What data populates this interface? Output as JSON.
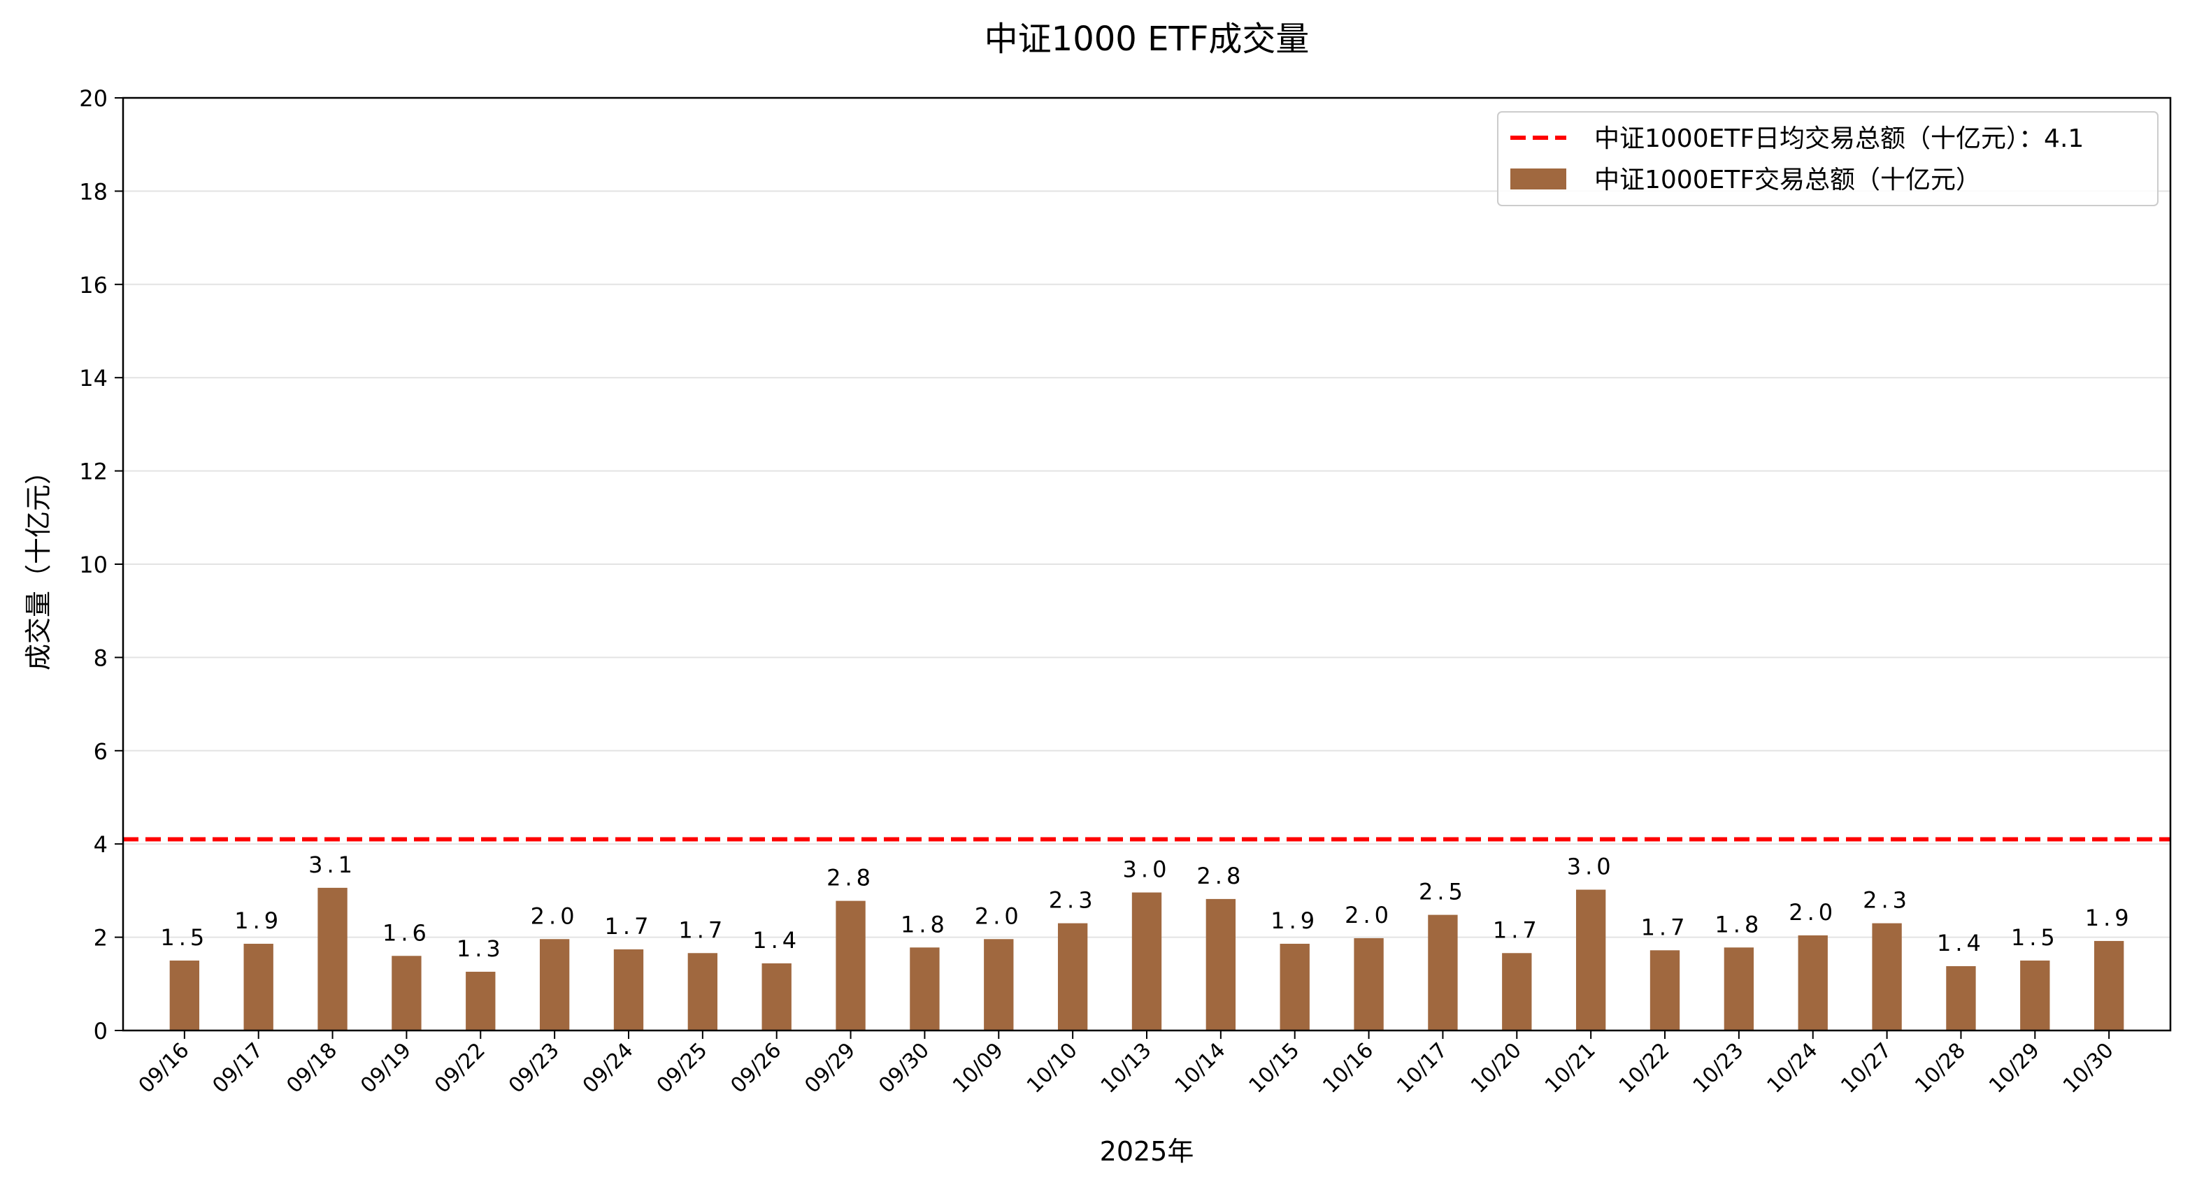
{
  "chart_data": {
    "type": "bar",
    "title": "中证1000 ETF成交量",
    "xlabel": "2025年",
    "ylabel": "成交量（十亿元）",
    "ylim": [
      0,
      20
    ],
    "yticks": [
      0,
      2,
      4,
      6,
      8,
      10,
      12,
      14,
      16,
      18,
      20
    ],
    "grid": "horizontal",
    "legend_position": "top-right",
    "categories": [
      "09/16",
      "09/17",
      "09/18",
      "09/19",
      "09/22",
      "09/23",
      "09/24",
      "09/25",
      "09/26",
      "09/29",
      "09/30",
      "10/09",
      "10/10",
      "10/13",
      "10/14",
      "10/15",
      "10/16",
      "10/17",
      "10/20",
      "10/21",
      "10/22",
      "10/23",
      "10/24",
      "10/27",
      "10/28",
      "10/29",
      "10/30"
    ],
    "series": [
      {
        "name": "中证1000ETF交易总额（十亿元）",
        "color": "#a0683f",
        "values": [
          1.5,
          1.86,
          3.06,
          1.6,
          1.26,
          1.96,
          1.74,
          1.66,
          1.44,
          2.78,
          1.78,
          1.96,
          2.3,
          2.96,
          2.82,
          1.86,
          1.98,
          2.48,
          1.66,
          3.02,
          1.72,
          1.78,
          2.04,
          2.3,
          1.38,
          1.5,
          1.92
        ],
        "labels": [
          "1.5",
          "1.9",
          "3.1",
          "1.6",
          "1.3",
          "2.0",
          "1.7",
          "1.7",
          "1.4",
          "2.8",
          "1.8",
          "2.0",
          "2.3",
          "3.0",
          "2.8",
          "1.9",
          "2.0",
          "2.5",
          "1.7",
          "3.0",
          "1.7",
          "1.8",
          "2.0",
          "2.3",
          "1.4",
          "1.5",
          "1.9"
        ]
      }
    ],
    "reference_line": {
      "name": "中证1000ETF日均交易总额（十亿元）：4.1",
      "value": 4.1,
      "color": "#ff0000",
      "style": "dashed"
    }
  }
}
